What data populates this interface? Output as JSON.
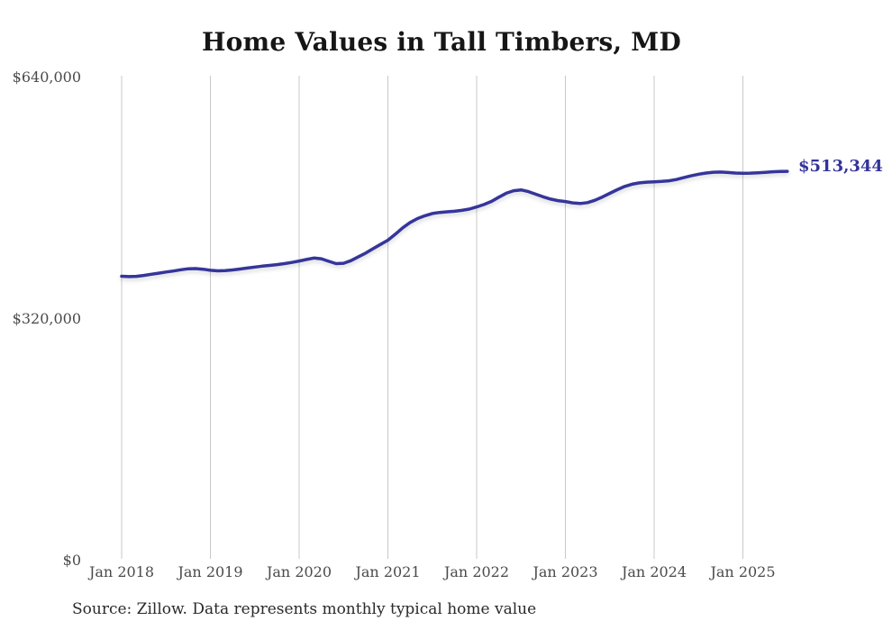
{
  "title": "Home Values in Tall Timbers, MD",
  "end_label": "$513,344",
  "source_note": "Source: Zillow. Data represents monthly typical home value",
  "colors": {
    "line": "#35359b",
    "accent": "#33339a",
    "grid": "#c8c8c8",
    "axis_text": "#4a4a4a",
    "title_text": "#161616",
    "background": "#ffffff"
  },
  "chart_data": {
    "type": "line",
    "title": "Home Values in Tall Timbers, MD",
    "xlabel": "",
    "ylabel": "",
    "x_start": "2018-01",
    "x_end": "2025-07",
    "frequency": "monthly",
    "x_tick_labels": [
      "Jan 2018",
      "Jan 2019",
      "Jan 2020",
      "Jan 2021",
      "Jan 2022",
      "Jan 2023",
      "Jan 2024",
      "Jan 2025"
    ],
    "y_ticks": [
      {
        "label": "$0",
        "value": 0
      },
      {
        "label": "$320,000",
        "value": 320000
      },
      {
        "label": "$640,000",
        "value": 640000
      }
    ],
    "ylim": [
      0,
      640000
    ],
    "grid": "vertical-only",
    "legend": "none",
    "end_value": 513344,
    "series": [
      {
        "name": "Typical home value",
        "values": [
          374300,
          373900,
          374200,
          375400,
          376900,
          378400,
          379900,
          381300,
          382900,
          384200,
          384500,
          383600,
          382200,
          381500,
          381900,
          382700,
          383900,
          385200,
          386500,
          387700,
          388600,
          389700,
          391100,
          392600,
          394500,
          396500,
          398500,
          397500,
          394100,
          391000,
          391500,
          395000,
          400100,
          405000,
          410900,
          416500,
          422100,
          430000,
          438500,
          445500,
          450800,
          454500,
          457400,
          458900,
          459700,
          460400,
          461600,
          463300,
          466100,
          469400,
          473400,
          479000,
          484300,
          487700,
          488700,
          486500,
          483000,
          479500,
          476500,
          474500,
          473300,
          471500,
          470700,
          471900,
          475000,
          479300,
          484200,
          489000,
          493200,
          496200,
          498000,
          499000,
          499500,
          500000,
          500800,
          502400,
          505000,
          507400,
          509500,
          511100,
          512100,
          512300,
          511800,
          511000,
          510700,
          510900,
          511400,
          512000,
          512700,
          513100,
          513344
        ]
      }
    ]
  }
}
